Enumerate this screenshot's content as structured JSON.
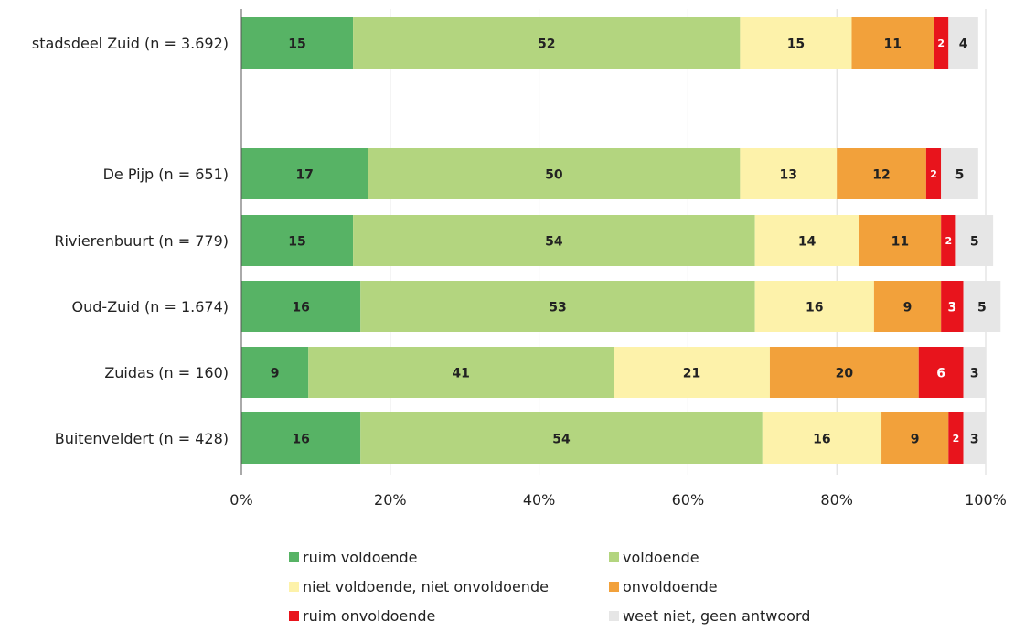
{
  "chart_data": {
    "type": "bar",
    "orientation": "horizontal",
    "stacked": true,
    "categories": [
      "stadsdeel Zuid (n = 3.692)",
      "De Pijp (n = 651)",
      "Rivierenbuurt (n = 779)",
      "Oud-Zuid (n = 1.674)",
      "Zuidas (n = 160)",
      "Buitenveldert (n = 428)"
    ],
    "series": [
      {
        "name": "ruim voldoende",
        "color": "#57b365",
        "label_color": "#222222",
        "values": [
          15,
          17,
          15,
          16,
          9,
          16
        ]
      },
      {
        "name": "voldoende",
        "color": "#b3d57f",
        "label_color": "#222222",
        "values": [
          52,
          50,
          54,
          53,
          41,
          54
        ]
      },
      {
        "name": "niet voldoende, niet onvoldoende",
        "color": "#fdf2aa",
        "label_color": "#222222",
        "values": [
          15,
          13,
          14,
          16,
          21,
          16
        ]
      },
      {
        "name": "onvoldoende",
        "color": "#f2a13b",
        "label_color": "#222222",
        "values": [
          11,
          12,
          11,
          9,
          20,
          9
        ]
      },
      {
        "name": "ruim onvoldoende",
        "color": "#e8141c",
        "label_color": "#ffffff",
        "values": [
          2,
          2,
          2,
          3,
          6,
          2
        ]
      },
      {
        "name": "weet niet, geen antwoord",
        "color": "#e6e6e6",
        "label_color": "#222222",
        "values": [
          4,
          5,
          5,
          5,
          3,
          3
        ]
      }
    ],
    "xlim": [
      0,
      100
    ],
    "xticks": [
      "0%",
      "20%",
      "40%",
      "60%",
      "80%",
      "100%"
    ],
    "grid": true,
    "legend_position": "bottom",
    "category_gap_after": [
      0
    ]
  }
}
